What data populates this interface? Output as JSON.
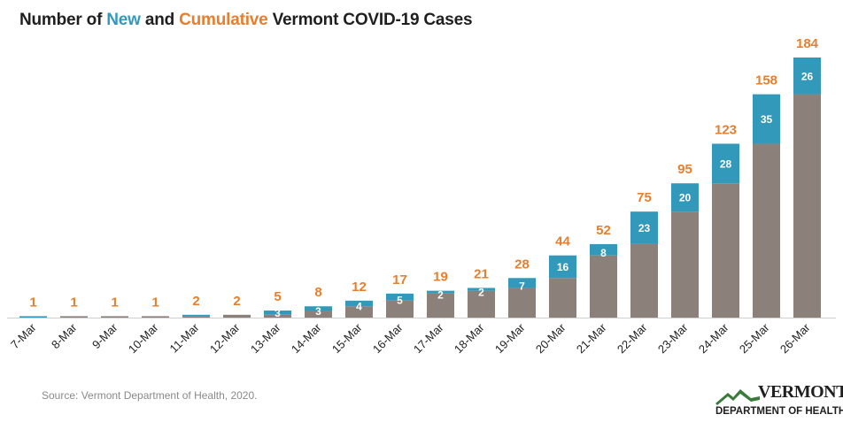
{
  "title": {
    "prefix": "Number of ",
    "new": "New",
    "middle": " and ",
    "cumulative": "Cumulative",
    "suffix": " Vermont COVID-19 Cases"
  },
  "source": "Source: Vermont Department of Health, 2020.",
  "logo": {
    "name": "VERMONT",
    "department": "DEPARTMENT OF HEALTH"
  },
  "colors": {
    "new": "#3399bb",
    "previous": "#8b817a",
    "cumulative_label": "#e87e2c"
  },
  "chart_data": {
    "type": "bar",
    "stacked": true,
    "categories": [
      "7-Mar",
      "8-Mar",
      "9-Mar",
      "10-Mar",
      "11-Mar",
      "12-Mar",
      "13-Mar",
      "14-Mar",
      "15-Mar",
      "16-Mar",
      "17-Mar",
      "18-Mar",
      "19-Mar",
      "20-Mar",
      "21-Mar",
      "22-Mar",
      "23-Mar",
      "24-Mar",
      "25-Mar",
      "26-Mar"
    ],
    "series": [
      {
        "values": [
          0,
          1,
          1,
          1,
          1,
          2,
          2,
          5,
          8,
          12,
          17,
          19,
          21,
          28,
          44,
          52,
          75,
          95,
          123,
          158
        ]
      },
      {
        "values": [
          1,
          0,
          0,
          0,
          1,
          0,
          3,
          3,
          4,
          5,
          2,
          2,
          7,
          16,
          8,
          23,
          20,
          28,
          35,
          26
        ]
      }
    ],
    "cumulative": [
      1,
      1,
      1,
      1,
      2,
      2,
      5,
      8,
      12,
      17,
      19,
      21,
      28,
      44,
      52,
      75,
      95,
      123,
      158,
      184
    ],
    "new_labels": [
      "",
      "",
      "",
      "",
      "",
      "",
      "3",
      "3",
      "4",
      "5",
      "2",
      "2",
      "7",
      "16",
      "8",
      "23",
      "20",
      "28",
      "35",
      "26"
    ],
    "ylim": [
      0,
      184
    ]
  }
}
